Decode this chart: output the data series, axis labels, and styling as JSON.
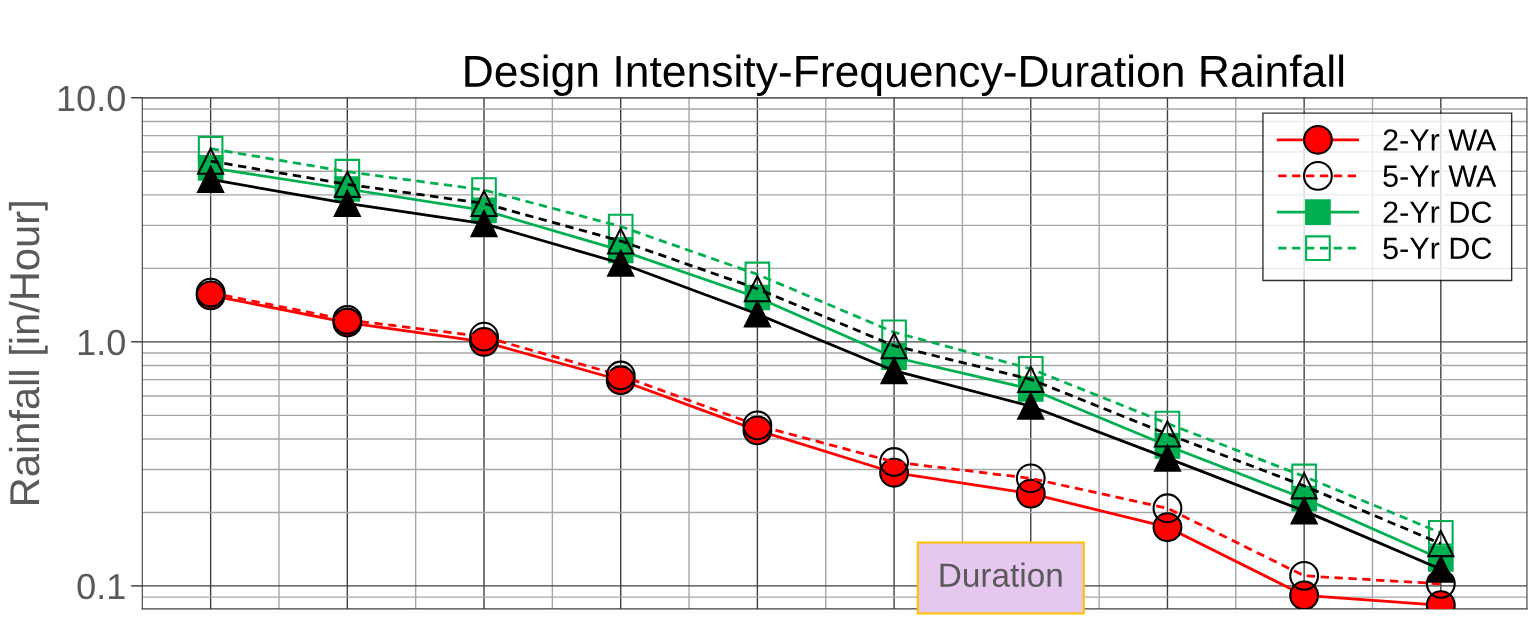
{
  "chart_data": {
    "type": "line",
    "title": "Design Intensity-Frequency-Duration Rainfall",
    "ylabel": "Rainfall [in/Hour]",
    "categories": [
      null,
      null,
      null,
      null,
      null,
      null,
      null,
      null,
      null,
      null
    ],
    "log": true,
    "ylim": [
      0.0805,
      10
    ],
    "yticks": [
      {
        "value": 0.1,
        "label": "0.1"
      },
      {
        "value": 1,
        "label": "1.0"
      },
      {
        "value": 10,
        "label": "10.0"
      }
    ],
    "grid": true,
    "legend": "top right",
    "annotations": [
      "Duration"
    ],
    "series": [
      {
        "name": "2-Yr WA",
        "color": "#ff0000",
        "marker": "circle",
        "line_style": "solid",
        "values": [
          1.55,
          1.2,
          1.0,
          0.696,
          0.434,
          0.291,
          0.239,
          0.174,
          0.0914,
          0.0834
        ]
      },
      {
        "name": "5-Yr WA",
        "color": "#ff0000",
        "marker": "circle",
        "line_style": "dashed",
        "values": [
          1.59,
          1.23,
          1.05,
          0.728,
          0.455,
          0.322,
          0.276,
          0.208,
          0.11,
          0.102
        ]
      },
      {
        "name": "2-Yr DC",
        "color": "#00b050",
        "marker": "square",
        "line_style": "solid",
        "values": [
          5.16,
          4.23,
          3.46,
          2.37,
          1.52,
          0.865,
          0.641,
          0.375,
          0.228,
          0.129
        ]
      },
      {
        "name": "5-Yr DC",
        "color": "#00b050",
        "marker": "square",
        "line_style": "dashed",
        "values": [
          6.19,
          4.98,
          4.19,
          2.97,
          1.89,
          1.095,
          0.776,
          0.463,
          0.281,
          0.165
        ]
      },
      {
        "color": "#000000",
        "marker": "triangle",
        "line_style": "solid",
        "values": [
          4.63,
          3.69,
          3.05,
          2.1,
          1.3,
          0.762,
          0.545,
          0.334,
          0.203,
          0.117
        ]
      },
      {
        "color": "#000000",
        "marker": "triangle",
        "line_style": "dashed",
        "values": [
          5.5,
          4.42,
          3.69,
          2.59,
          1.65,
          0.964,
          0.702,
          0.419,
          0.257,
          0.149
        ]
      }
    ]
  }
}
